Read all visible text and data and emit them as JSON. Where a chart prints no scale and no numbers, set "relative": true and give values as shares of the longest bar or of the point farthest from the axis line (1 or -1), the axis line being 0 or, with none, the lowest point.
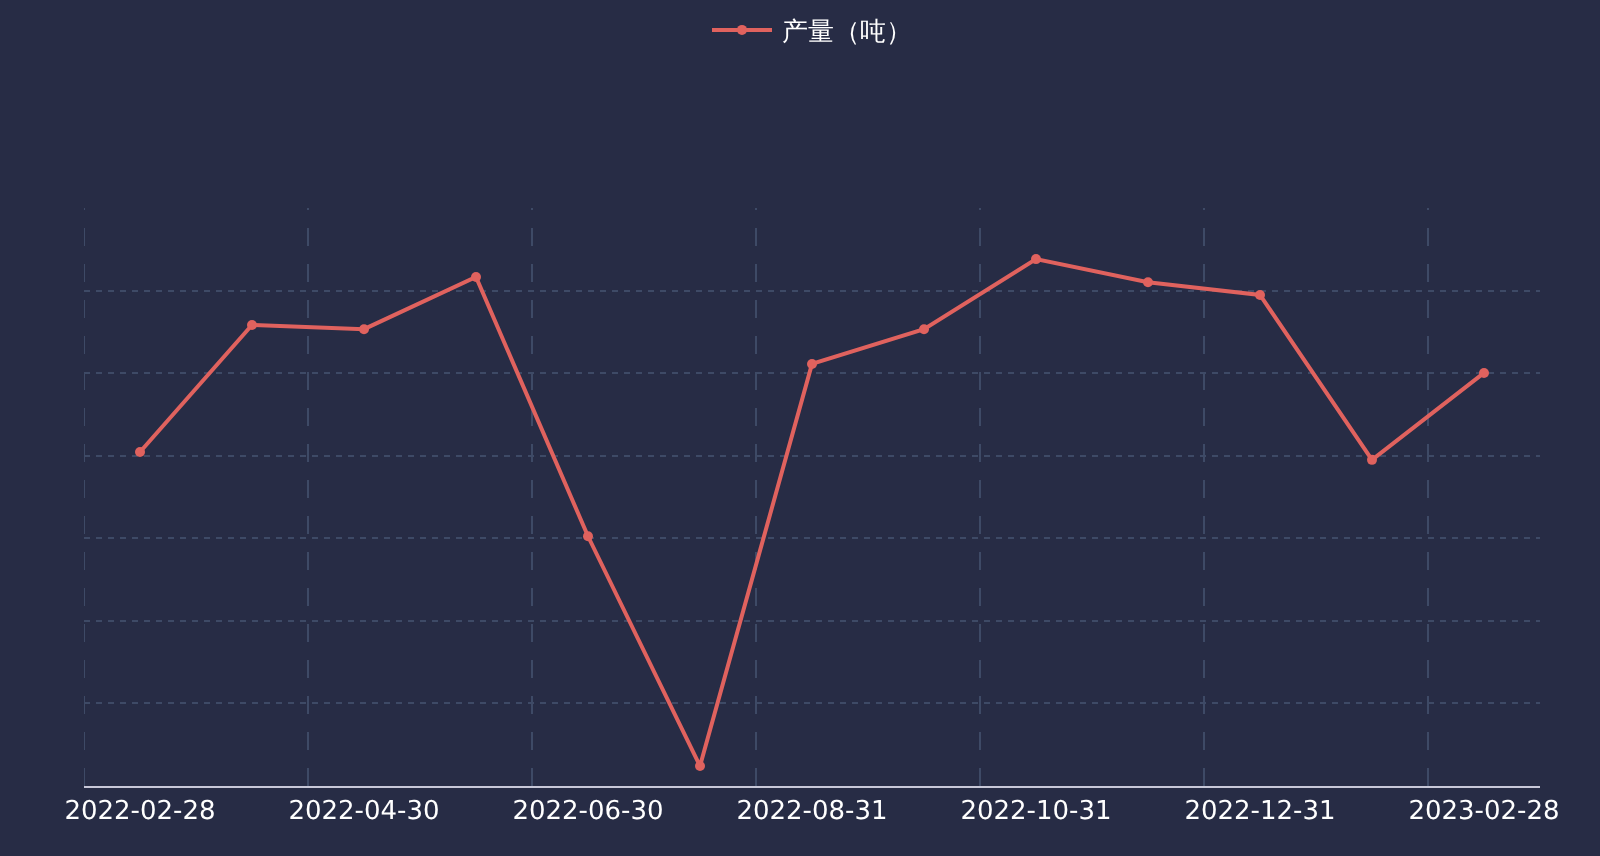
{
  "chart_data": {
    "type": "line",
    "relative": true,
    "categories": [
      "2022-02-28",
      null,
      "2022-04-30",
      null,
      "2022-06-30",
      null,
      "2022-08-31",
      null,
      "2022-10-31",
      null,
      "2022-12-31",
      null,
      "2023-02-28"
    ],
    "series": [
      {
        "name": "产量（吨）",
        "color": "#e0625e",
        "values": [
          0.634,
          0.875,
          0.867,
          0.966,
          0.474,
          0.038,
          0.801,
          0.867,
          1,
          0.956,
          0.932,
          0.619,
          0.784
        ]
      }
    ],
    "grid": true,
    "legend": "top",
    "marker": "circle",
    "line_style": "solid"
  }
}
